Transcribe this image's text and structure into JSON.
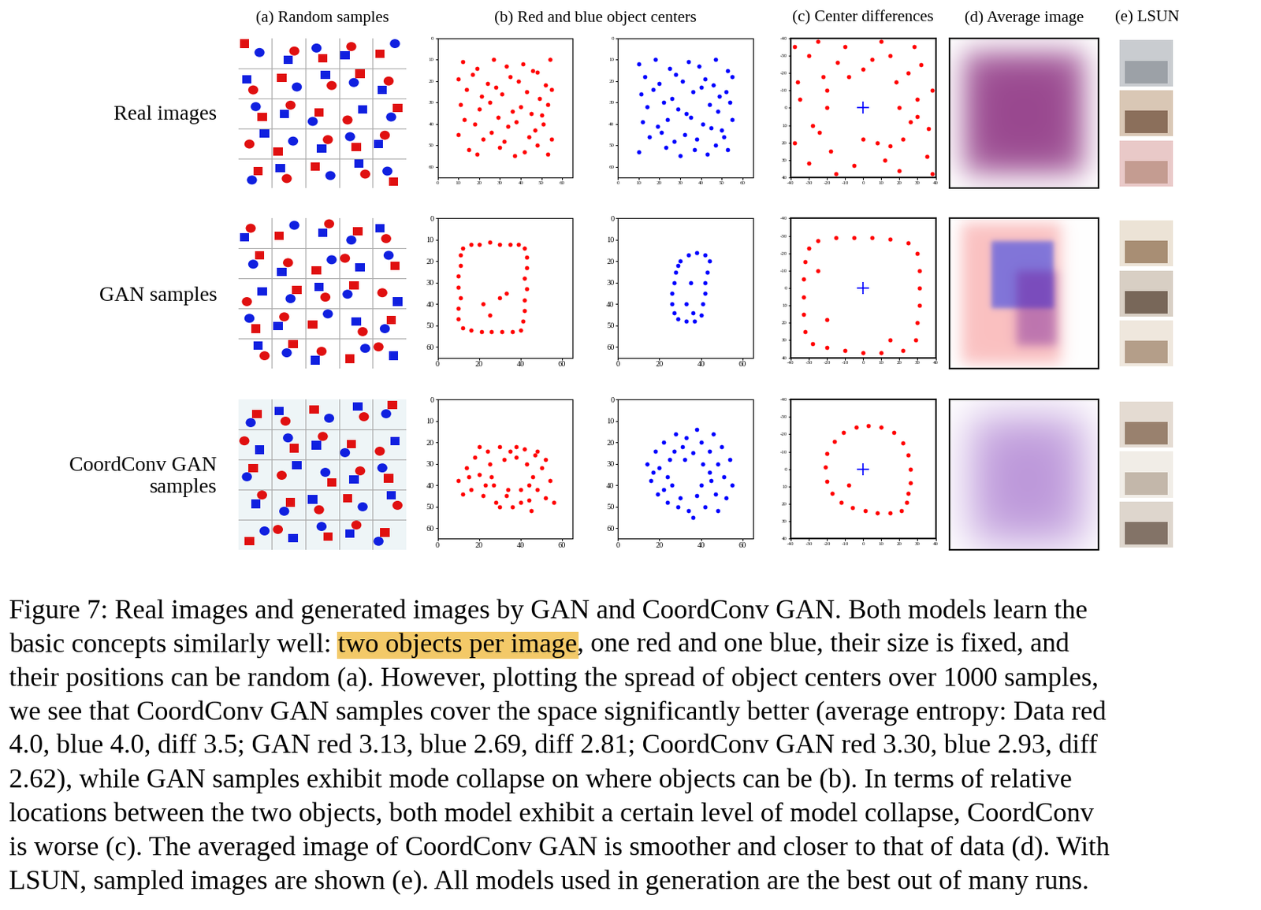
{
  "figure": {
    "column_titles": [
      "(a) Random samples",
      "(b) Red and blue object centers",
      "(c) Center differences",
      "(d) Average image",
      "(e) LSUN"
    ],
    "row_labels": [
      "Real images",
      "GAN samples",
      "CoordConv GAN samples"
    ],
    "caption": [
      "Figure 7: Real images and generated images by GAN and CoordConv GAN. Both models learn the",
      "basic concepts similarly well: two objects per image, one red and one blue, their size is fixed, and",
      "their positions can be random (a). However, plotting the spread of object centers over 1000 samples,",
      "we see that CoordConv GAN samples cover the space significantly better (average entropy: Data red",
      "4.0, blue 4.0, diff 3.5; GAN red 3.13, blue 2.69, diff 2.81; CoordConv GAN red 3.30, blue 2.93, diff",
      "2.62), while GAN samples exhibit mode collapse on where objects can be (b). In terms of relative",
      "locations between the two objects, both model exhibit a certain level of model collapse, CoordConv",
      "is worse (c). The averaged image of CoordConv GAN is smoother and closer to that of data (d). With",
      "LSUN, sampled images are shown (e). All models used in generation are the best out of many runs."
    ],
    "highlight": "two objects per image"
  },
  "chart_data": [
    {
      "type": "scatter",
      "xlim": [
        0,
        65
      ],
      "ylim": [
        65,
        0
      ],
      "xticks": [
        0,
        10,
        20,
        30,
        40,
        50,
        60
      ],
      "yticks": [
        0,
        10,
        20,
        30,
        40,
        50,
        60
      ],
      "series": [
        {
          "color": "#ff0000",
          "marker": "o",
          "x": [
            12,
            19,
            27,
            33,
            41,
            46,
            54,
            10,
            17,
            24,
            35,
            39,
            48,
            52,
            14,
            21,
            28,
            31,
            43,
            49,
            55,
            11,
            20,
            25,
            36,
            40,
            45,
            53,
            13,
            18,
            29,
            34,
            38,
            50,
            51,
            10,
            22,
            26,
            32,
            44,
            47,
            55,
            15,
            19,
            30,
            37,
            42,
            48,
            53
          ],
          "y": [
            11,
            14,
            10,
            13,
            12,
            15,
            10,
            19,
            17,
            21,
            18,
            20,
            16,
            22,
            24,
            27,
            23,
            26,
            25,
            28,
            24,
            31,
            33,
            30,
            34,
            32,
            35,
            31,
            38,
            40,
            37,
            41,
            39,
            36,
            40,
            45,
            47,
            44,
            48,
            46,
            43,
            47,
            52,
            54,
            51,
            55,
            53,
            50,
            54
          ]
        }
      ]
    },
    {
      "type": "scatter",
      "xlim": [
        0,
        65
      ],
      "ylim": [
        65,
        0
      ],
      "xticks": [
        0,
        10,
        20,
        30,
        40,
        50,
        60
      ],
      "yticks": [
        0,
        10,
        20,
        30,
        40,
        50,
        60
      ],
      "series": [
        {
          "color": "#0000ff",
          "marker": "o",
          "x": [
            10,
            18,
            25,
            34,
            39,
            47,
            53,
            13,
            20,
            28,
            31,
            42,
            46,
            55,
            11,
            17,
            26,
            36,
            40,
            49,
            52,
            14,
            22,
            29,
            33,
            44,
            48,
            54,
            12,
            19,
            24,
            35,
            41,
            45,
            55,
            15,
            21,
            27,
            32,
            38,
            50,
            51,
            10,
            23,
            30,
            37,
            43,
            47,
            53
          ],
          "y": [
            12,
            10,
            14,
            11,
            13,
            10,
            15,
            18,
            21,
            17,
            20,
            19,
            22,
            18,
            26,
            24,
            28,
            25,
            23,
            27,
            25,
            32,
            30,
            33,
            35,
            31,
            34,
            30,
            39,
            41,
            38,
            37,
            40,
            42,
            38,
            46,
            44,
            48,
            45,
            47,
            43,
            46,
            53,
            51,
            55,
            52,
            54,
            50,
            52
          ]
        }
      ]
    },
    {
      "type": "scatter",
      "xlim": [
        -40,
        40
      ],
      "ylim": [
        40,
        -40
      ],
      "xticks": [
        -40,
        -30,
        -20,
        -10,
        0,
        10,
        20,
        30,
        40
      ],
      "yticks": [
        -40,
        -30,
        -20,
        -10,
        0,
        10,
        20,
        30,
        40
      ],
      "series": [
        {
          "color": "#ff0000",
          "marker": "o",
          "x": [
            20,
            30,
            38,
            25,
            15,
            0,
            -10,
            -22,
            -35,
            -28,
            -18,
            -5,
            8,
            22,
            35,
            28,
            -30,
            -38,
            10,
            -15,
            18,
            -20,
            0,
            32,
            -25,
            38,
            -36,
            12,
            -8,
            26,
            -30,
            5,
            36,
            -14,
            20,
            -24,
            30,
            -38,
            15,
            -20
          ],
          "y": [
            0,
            5,
            -10,
            -20,
            -30,
            -22,
            -35,
            -18,
            -5,
            10,
            25,
            33,
            20,
            18,
            28,
            -35,
            -30,
            20,
            -38,
            38,
            -15,
            0,
            18,
            -25,
            -38,
            38,
            -15,
            30,
            -18,
            8,
            32,
            -28,
            12,
            -26,
            36,
            14,
            -5,
            -35,
            22,
            -10
          ]
        },
        {
          "color": "#0000ff",
          "marker": "+",
          "x": [
            0
          ],
          "y": [
            0
          ]
        }
      ]
    },
    {
      "type": "scatter",
      "xlim": [
        0,
        65
      ],
      "ylim": [
        65,
        0
      ],
      "xticks": [
        0,
        20,
        40,
        60
      ],
      "yticks": [
        0,
        10,
        20,
        30,
        40,
        50,
        60
      ],
      "series": [
        {
          "color": "#ff0000",
          "marker": "o",
          "x": [
            12,
            16,
            20,
            25,
            30,
            35,
            39,
            42,
            43,
            43,
            42,
            43,
            42,
            42,
            41,
            40,
            36,
            31,
            26,
            21,
            16,
            12,
            10,
            10,
            11,
            10,
            10,
            11,
            11,
            30,
            22,
            33,
            25
          ],
          "y": [
            14,
            12,
            12,
            11,
            12,
            12,
            12,
            14,
            18,
            23,
            28,
            33,
            38,
            43,
            48,
            52,
            53,
            53,
            53,
            53,
            52,
            51,
            47,
            42,
            37,
            32,
            27,
            22,
            17,
            37,
            40,
            35,
            45
          ]
        }
      ]
    },
    {
      "type": "scatter",
      "xlim": [
        0,
        65
      ],
      "ylim": [
        65,
        0
      ],
      "xticks": [
        0,
        20,
        40,
        60
      ],
      "yticks": [
        0,
        10,
        20,
        30,
        40,
        50,
        60
      ],
      "series": [
        {
          "color": "#0000ff",
          "marker": "o",
          "x": [
            30,
            34,
            38,
            42,
            44,
            43,
            42,
            42,
            41,
            40,
            37,
            33,
            29,
            27,
            26,
            26,
            27,
            28,
            29,
            35,
            33,
            36
          ],
          "y": [
            20,
            17,
            16,
            17,
            20,
            25,
            30,
            35,
            40,
            45,
            48,
            48,
            47,
            44,
            40,
            35,
            30,
            25,
            22,
            30,
            40,
            44
          ]
        }
      ]
    },
    {
      "type": "scatter",
      "xlim": [
        -40,
        40
      ],
      "ylim": [
        40,
        -40
      ],
      "xticks": [
        -40,
        -30,
        -20,
        -10,
        0,
        10,
        20,
        30,
        40
      ],
      "yticks": [
        -40,
        -30,
        -20,
        -10,
        0,
        10,
        20,
        30,
        40
      ],
      "series": [
        {
          "color": "#ff0000",
          "marker": "o",
          "x": [
            -25,
            -15,
            -5,
            5,
            15,
            25,
            30,
            31,
            31,
            31,
            30,
            29,
            22,
            10,
            0,
            -10,
            -20,
            -28,
            -32,
            -33,
            -33,
            -33,
            -32,
            -30,
            -25,
            -20,
            15
          ],
          "y": [
            -27,
            -29,
            -29,
            -29,
            -28,
            -26,
            -20,
            -10,
            0,
            10,
            20,
            30,
            36,
            37,
            37,
            36,
            34,
            32,
            25,
            15,
            5,
            -5,
            -15,
            -23,
            -10,
            18,
            30
          ]
        },
        {
          "color": "#0000ff",
          "marker": "+",
          "x": [
            0
          ],
          "y": [
            0
          ]
        }
      ]
    },
    {
      "type": "scatter",
      "xlim": [
        0,
        65
      ],
      "ylim": [
        65,
        0
      ],
      "xticks": [
        0,
        20,
        40,
        60
      ],
      "yticks": [
        0,
        10,
        20,
        30,
        40,
        50,
        60
      ],
      "series": [
        {
          "color": "#ff0000",
          "marker": "o",
          "x": [
            10,
            14,
            16,
            18,
            20,
            22,
            24,
            25,
            27,
            28,
            30,
            32,
            33,
            35,
            36,
            38,
            40,
            42,
            43,
            44,
            46,
            47,
            48,
            50,
            52,
            54,
            56,
            20,
            12,
            30,
            45,
            40,
            26,
            48,
            15,
            34,
            23,
            52,
            44,
            38
          ],
          "y": [
            38,
            32,
            42,
            27,
            35,
            45,
            24,
            30,
            40,
            48,
            22,
            28,
            45,
            24,
            50,
            27,
            42,
            23,
            30,
            47,
            36,
            26,
            42,
            32,
            46,
            38,
            48,
            22,
            44,
            50,
            52,
            48,
            36,
            24,
            36,
            42,
            40,
            28,
            40,
            22
          ]
        }
      ]
    },
    {
      "type": "scatter",
      "xlim": [
        0,
        65
      ],
      "ylim": [
        65,
        0
      ],
      "xticks": [
        0,
        20,
        40,
        60
      ],
      "yticks": [
        0,
        10,
        20,
        30,
        40,
        50,
        60
      ],
      "series": [
        {
          "color": "#0000ff",
          "marker": "o",
          "x": [
            14,
            16,
            18,
            19,
            20,
            22,
            24,
            25,
            26,
            28,
            29,
            31,
            33,
            34,
            36,
            38,
            40,
            41,
            42,
            44,
            45,
            46,
            47,
            48,
            50,
            51,
            52,
            54,
            36,
            24,
            40,
            44,
            30,
            27,
            55,
            17,
            48,
            38,
            22,
            32
          ],
          "y": [
            30,
            38,
            24,
            44,
            32,
            20,
            48,
            28,
            40,
            16,
            50,
            22,
            18,
            52,
            25,
            45,
            20,
            30,
            50,
            24,
            38,
            16,
            44,
            30,
            22,
            36,
            46,
            28,
            55,
            36,
            40,
            34,
            46,
            24,
            40,
            34,
            52,
            14,
            42,
            28
          ]
        }
      ]
    },
    {
      "type": "scatter",
      "xlim": [
        -40,
        40
      ],
      "ylim": [
        40,
        -40
      ],
      "xticks": [
        -40,
        -30,
        -20,
        -10,
        0,
        10,
        20,
        30,
        40
      ],
      "yticks": [
        -40,
        -30,
        -20,
        -10,
        0,
        10,
        20,
        30,
        40
      ],
      "series": [
        {
          "color": "#ff0000",
          "marker": "o",
          "x": [
            26,
            25,
            22,
            17,
            10,
            3,
            -4,
            -11,
            -16,
            -20,
            -21,
            -20,
            -17,
            -12,
            -6,
            1,
            8,
            15,
            21,
            25,
            26,
            -8,
            24
          ],
          "y": [
            0,
            -8,
            -15,
            -21,
            -24,
            -25,
            -24,
            -21,
            -16,
            -9,
            -1,
            7,
            14,
            19,
            22,
            24,
            25,
            25,
            24,
            14,
            8,
            9,
            19
          ]
        },
        {
          "color": "#0000ff",
          "marker": "+",
          "x": [
            0
          ],
          "y": [
            0
          ]
        }
      ]
    }
  ]
}
